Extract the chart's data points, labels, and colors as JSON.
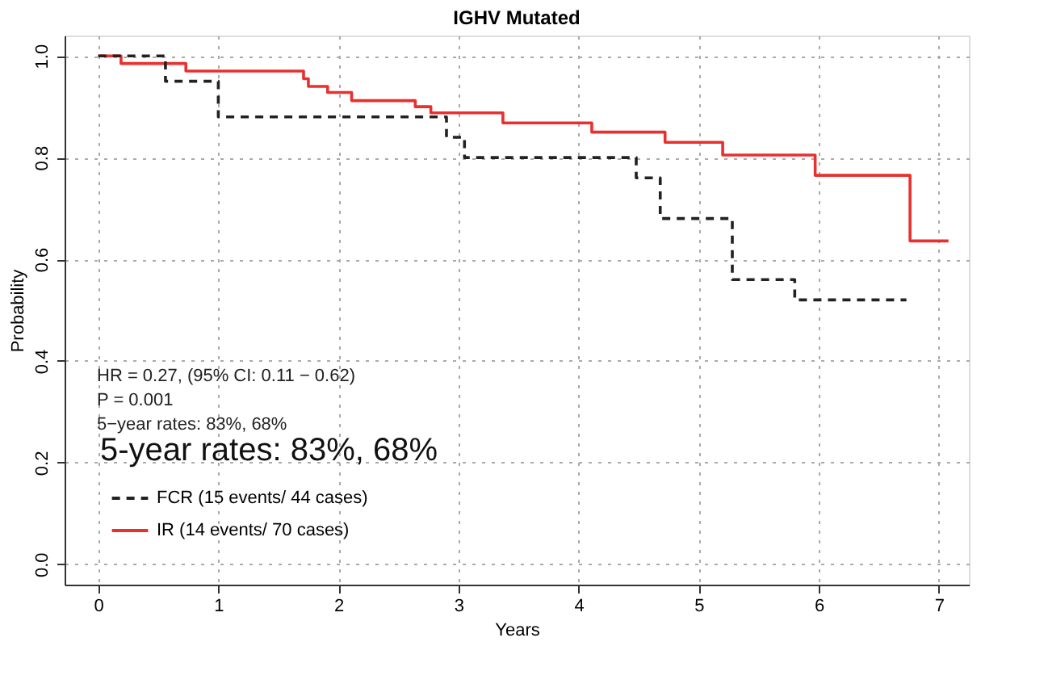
{
  "chart_data": {
    "type": "step",
    "title": "IGHV Mutated",
    "xlabel": "Years",
    "ylabel": "Probability",
    "xlim": [
      -0.28,
      7.25
    ],
    "ylim": [
      -0.04,
      1.04
    ],
    "xticks": [
      0,
      1,
      2,
      3,
      4,
      5,
      6,
      7
    ],
    "yticks": [
      {
        "value": 0,
        "label": "0.0"
      },
      0.2,
      0.4,
      0.6,
      0.8,
      {
        "value": 1,
        "label": "1.0"
      }
    ],
    "grid": true,
    "legend": "bottom left",
    "series": [
      {
        "name": "FCR  (15 events/ 44 cases)",
        "color": "#222222",
        "line_style": "dashed",
        "x": [
          0,
          0.56,
          1.0,
          2.9,
          3.05,
          4.48,
          4.68,
          5.28,
          5.8,
          6.73
        ],
        "values": [
          1.0,
          0.95,
          0.88,
          0.84,
          0.8,
          0.76,
          0.68,
          0.56,
          0.52,
          0.52
        ]
      },
      {
        "name": "IR  (14 events/ 70 cases)",
        "color": "#e8302e",
        "line_style": "solid",
        "x": [
          0,
          0.19,
          0.73,
          1.71,
          1.75,
          1.91,
          2.11,
          2.64,
          2.77,
          3.37,
          4.11,
          4.72,
          5.2,
          5.97,
          6.76,
          7.08
        ],
        "values": [
          1.0,
          0.985,
          0.97,
          0.955,
          0.94,
          0.928,
          0.912,
          0.9,
          0.888,
          0.868,
          0.85,
          0.83,
          0.805,
          0.765,
          0.636,
          0.636
        ]
      }
    ],
    "annotations": [
      "HR = 0.27, (95% CI: 0.11 − 0.62)",
      "P = 0.001",
      "5−year rates: 83%, 68%",
      "5-year rates: 83%, 68%"
    ]
  }
}
